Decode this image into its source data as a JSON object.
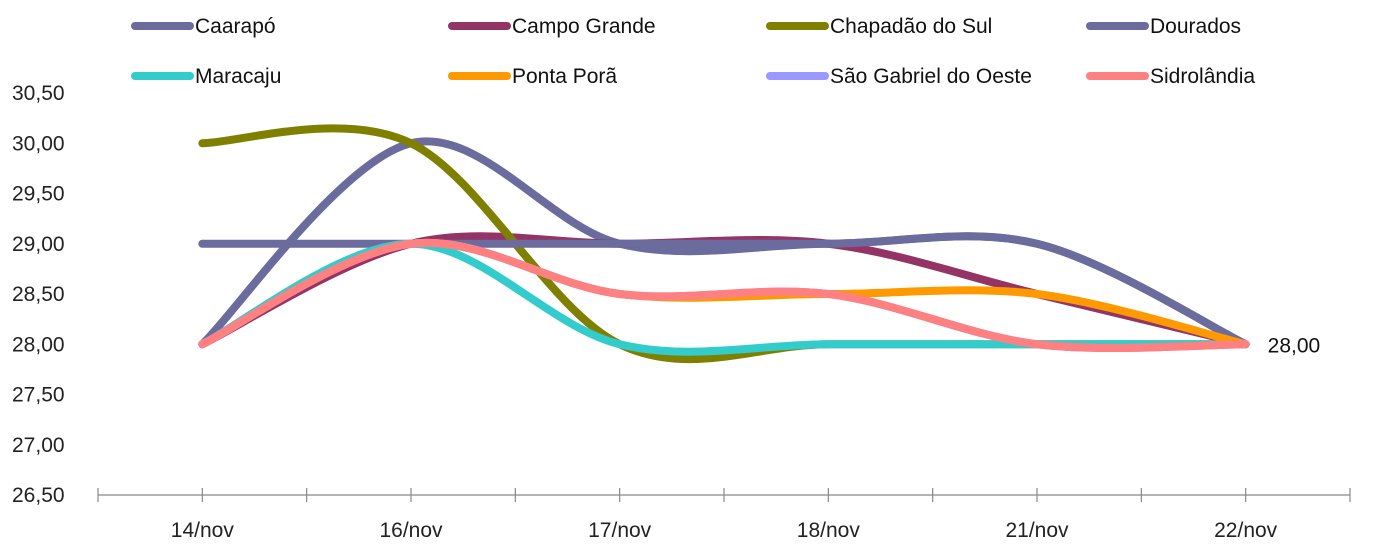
{
  "chart_data": {
    "type": "line",
    "categories": [
      "14/nov",
      "16/nov",
      "17/nov",
      "18/nov",
      "21/nov",
      "22/nov"
    ],
    "ylim": [
      26.5,
      30.5
    ],
    "yticks": [
      "26,50",
      "27,00",
      "27,50",
      "28,00",
      "28,50",
      "29,00",
      "29,50",
      "30,00",
      "30,50"
    ],
    "ytick_values": [
      26.5,
      27.0,
      27.5,
      28.0,
      28.5,
      29.0,
      29.5,
      30.0,
      30.5
    ],
    "grid": false,
    "legend_position": "top",
    "series": [
      {
        "name": "Caarapó",
        "color": "#6B6B9E",
        "values": [
          28.0,
          30.0,
          29.0,
          29.0,
          29.0,
          28.0
        ]
      },
      {
        "name": "Campo Grande",
        "color": "#943365",
        "values": [
          28.0,
          29.0,
          29.0,
          29.0,
          28.5,
          28.0
        ]
      },
      {
        "name": "Chapadão do Sul",
        "color": "#808000",
        "values": [
          30.0,
          30.0,
          28.0,
          28.0,
          28.0,
          28.0
        ]
      },
      {
        "name": "Dourados",
        "color": "#6B6B9E",
        "values": [
          29.0,
          29.0,
          29.0,
          29.0,
          29.0,
          28.0
        ]
      },
      {
        "name": "Maracaju",
        "color": "#33CCCC",
        "values": [
          28.0,
          29.0,
          28.0,
          28.0,
          28.0,
          28.0
        ]
      },
      {
        "name": "Ponta Porã",
        "color": "#FF9900",
        "values": [
          28.0,
          29.0,
          28.5,
          28.5,
          28.5,
          28.0
        ]
      },
      {
        "name": "São Gabriel do Oeste",
        "color": "#9999FF",
        "values": [
          28.0,
          29.0,
          28.5,
          28.5,
          28.0,
          28.0
        ]
      },
      {
        "name": "Sidrolândia",
        "color": "#FF8080",
        "values": [
          28.0,
          29.0,
          28.5,
          28.5,
          28.0,
          28.0
        ]
      }
    ],
    "annotations": [
      {
        "text": "28,00",
        "category": "22/nov",
        "value": 28.0
      }
    ]
  }
}
